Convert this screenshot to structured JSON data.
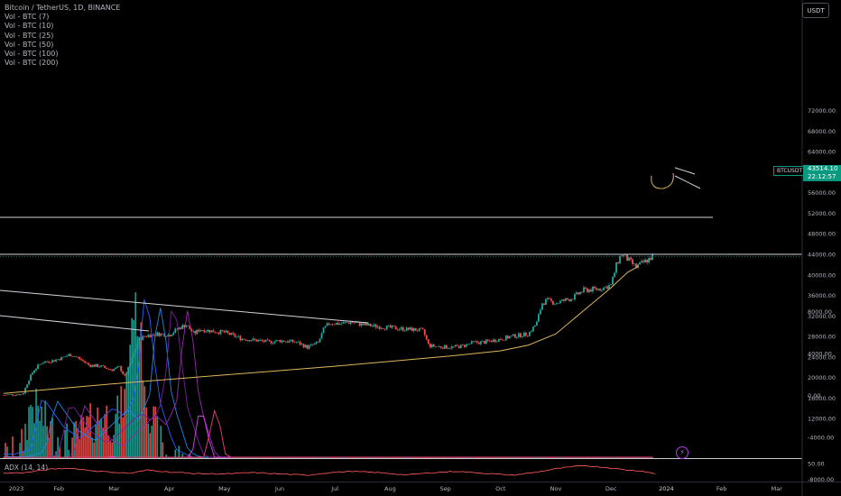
{
  "legend": {
    "title": "Bitcoin / TetherUS, 1D, BINANCE",
    "volumes": [
      "Vol - BTC (7)",
      "Vol - BTC (10)",
      "Vol - BTC (25)",
      "Vol - BTC (50)",
      "Vol - BTC (100)",
      "Vol - BTC (200)"
    ]
  },
  "currency_button": "USDT",
  "last_price": {
    "symbol": "BTCUSDT",
    "price": "43514.10",
    "countdown": "22:12:57",
    "color": "#089981"
  },
  "adx_label": "ADX (14, 14)",
  "bolt_icon": "lightning-icon",
  "colors": {
    "up": "#26a69a",
    "down": "#ef5350",
    "ma": "#e0b45c",
    "adx": "#ef5350",
    "vol_ma": [
      "#2962ff",
      "#1e88e5",
      "#7b1fa2",
      "#9c27b0",
      "#e040fb",
      "#ec407a"
    ]
  },
  "chart_data": [
    {
      "type": "candlestick",
      "title": "Bitcoin / TetherUS, 1D, BINANCE",
      "price_axis_ticks": [
        "72000.00",
        "68000.00",
        "64000.00",
        "60000.00",
        "56000.00",
        "52000.00",
        "48000.00",
        "44000.00",
        "40000.00",
        "36000.00",
        "32000.00",
        "28000.00",
        "24000.00",
        "20000.00",
        "16000.00",
        "12000.00"
      ],
      "time_axis_ticks": [
        "2023",
        "Feb",
        "Mar",
        "Apr",
        "May",
        "Jun",
        "Jul",
        "Aug",
        "Sep",
        "Oct",
        "Nov",
        "Dec",
        "2024",
        "Feb",
        "Mar"
      ],
      "ylim": [
        11000,
        75000
      ],
      "close_path": [
        [
          0,
          16600
        ],
        [
          0.35,
          16800
        ],
        [
          0.45,
          19500
        ],
        [
          0.55,
          21500
        ],
        [
          0.7,
          23000
        ],
        [
          0.9,
          23300
        ],
        [
          1.05,
          23800
        ],
        [
          1.2,
          24500
        ],
        [
          1.35,
          23800
        ],
        [
          1.55,
          22400
        ],
        [
          1.75,
          22200
        ],
        [
          1.95,
          21500
        ],
        [
          2.1,
          22000
        ],
        [
          2.2,
          20000
        ],
        [
          2.35,
          24500
        ],
        [
          2.45,
          27500
        ],
        [
          2.6,
          28200
        ],
        [
          2.8,
          28500
        ],
        [
          3.0,
          28300
        ],
        [
          3.15,
          29500
        ],
        [
          3.3,
          30300
        ],
        [
          3.45,
          28500
        ],
        [
          3.55,
          29400
        ],
        [
          3.8,
          29000
        ],
        [
          4.0,
          28800
        ],
        [
          4.3,
          27600
        ],
        [
          4.6,
          27200
        ],
        [
          4.8,
          26900
        ],
        [
          5.0,
          27200
        ],
        [
          5.3,
          26900
        ],
        [
          5.5,
          25900
        ],
        [
          5.7,
          26800
        ],
        [
          5.8,
          29500
        ],
        [
          5.9,
          30600
        ],
        [
          6.1,
          30500
        ],
        [
          6.3,
          30800
        ],
        [
          6.5,
          30300
        ],
        [
          6.8,
          29900
        ],
        [
          7.0,
          29700
        ],
        [
          7.3,
          29400
        ],
        [
          7.5,
          29300
        ],
        [
          7.6,
          29000
        ],
        [
          7.7,
          26200
        ],
        [
          7.9,
          26000
        ],
        [
          8.1,
          25900
        ],
        [
          8.3,
          26100
        ],
        [
          8.5,
          26800
        ],
        [
          8.7,
          26900
        ],
        [
          8.9,
          27300
        ],
        [
          9.0,
          27500
        ],
        [
          9.2,
          28000
        ],
        [
          9.5,
          28500
        ],
        [
          9.65,
          30500
        ],
        [
          9.75,
          34500
        ],
        [
          9.85,
          35000
        ],
        [
          10.0,
          34500
        ],
        [
          10.3,
          35500
        ],
        [
          10.5,
          37000
        ],
        [
          10.8,
          37300
        ],
        [
          11.0,
          38000
        ],
        [
          11.1,
          42000
        ],
        [
          11.18,
          44000
        ],
        [
          11.3,
          43000
        ],
        [
          11.45,
          41500
        ],
        [
          11.6,
          42500
        ],
        [
          11.75,
          43514
        ]
      ],
      "moving_average": [
        [
          0,
          16900
        ],
        [
          2.0,
          18800
        ],
        [
          4.0,
          20500
        ],
        [
          6.0,
          22200
        ],
        [
          8.0,
          24100
        ],
        [
          9.0,
          25200
        ],
        [
          9.5,
          26300
        ],
        [
          10.0,
          28500
        ],
        [
          10.5,
          33000
        ],
        [
          11.0,
          37500
        ],
        [
          11.3,
          40500
        ],
        [
          11.5,
          41700
        ]
      ],
      "horizontal_levels": [
        51200,
        44000
      ],
      "last_price": 43514.1
    },
    {
      "type": "bar",
      "title": "Vol - BTC",
      "value_axis_ticks": [
        "8000.00",
        "4000.00",
        "0.00",
        "-4000.00",
        "-8000.00"
      ],
      "volume_profile": [
        [
          0,
          -7000
        ],
        [
          0.3,
          -6500
        ],
        [
          0.5,
          -1500
        ],
        [
          0.7,
          -3000
        ],
        [
          0.9,
          -4500
        ],
        [
          1.2,
          -5500
        ],
        [
          1.5,
          -4000
        ],
        [
          1.8,
          -2500
        ],
        [
          2.0,
          -3500
        ],
        [
          2.2,
          -1000
        ],
        [
          2.35,
          8000
        ],
        [
          2.45,
          6000
        ],
        [
          2.6,
          -1500
        ],
        [
          2.9,
          -6500
        ],
        [
          3.3,
          -7500
        ],
        [
          3.8,
          -8500
        ],
        [
          4.5,
          -9500
        ],
        [
          5.5,
          -10000
        ],
        [
          6.5,
          -10300
        ],
        [
          7.5,
          -10500
        ],
        [
          8.5,
          -10500
        ],
        [
          9.5,
          -10300
        ],
        [
          9.8,
          -9800
        ],
        [
          10.5,
          -10000
        ],
        [
          11.0,
          -9700
        ],
        [
          11.5,
          -10100
        ]
      ]
    },
    {
      "type": "line",
      "title": "ADX (14, 14)",
      "value_axis_ticks": [
        "50.00"
      ],
      "ylim": [
        0,
        80
      ],
      "values": [
        [
          0,
          20
        ],
        [
          0.4,
          22
        ],
        [
          0.8,
          32
        ],
        [
          1.2,
          36
        ],
        [
          1.6,
          28
        ],
        [
          2.0,
          23
        ],
        [
          2.3,
          20
        ],
        [
          2.6,
          30
        ],
        [
          3.0,
          24
        ],
        [
          3.5,
          19
        ],
        [
          4.0,
          18
        ],
        [
          4.5,
          22
        ],
        [
          5.0,
          18
        ],
        [
          5.5,
          14
        ],
        [
          5.9,
          22
        ],
        [
          6.3,
          26
        ],
        [
          6.8,
          22
        ],
        [
          7.3,
          15
        ],
        [
          7.7,
          21
        ],
        [
          8.2,
          26
        ],
        [
          8.7,
          20
        ],
        [
          9.2,
          14
        ],
        [
          9.6,
          22
        ],
        [
          10.0,
          34
        ],
        [
          10.5,
          44
        ],
        [
          10.9,
          38
        ],
        [
          11.3,
          30
        ],
        [
          11.6,
          26
        ],
        [
          11.8,
          18
        ]
      ]
    }
  ]
}
